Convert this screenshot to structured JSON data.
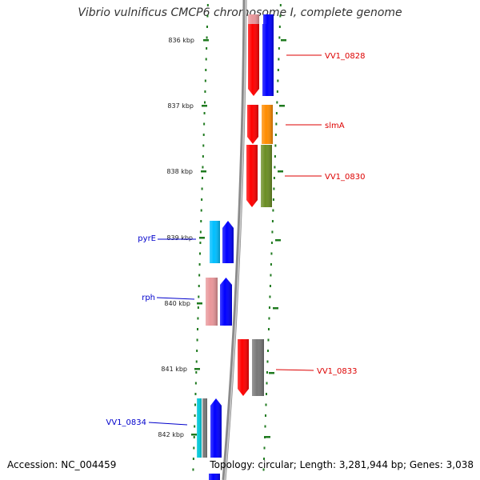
{
  "title": "Vibrio vulnificus CMCP6 chromosome I, complete genome",
  "accession": "Accession: NC_004459",
  "topology": "Topology: circular; Length: 3,281,944 bp; Genes: 3,038",
  "colors": {
    "red": "#ff0000",
    "blue": "#0000ff",
    "orange": "#ff8c00",
    "olive": "#6b8e23",
    "cyan": "#00bfff",
    "pink": "#e9969a",
    "grey": "#777777",
    "teal": "#00c8d8",
    "tick_green": "#1f7a1f",
    "label_red": "#dd0000",
    "label_blue": "#0000cc"
  },
  "ruler": [
    {
      "label": "836 kbp"
    },
    {
      "label": "837 kbp"
    },
    {
      "label": "838 kbp"
    },
    {
      "label": "839 kbp"
    },
    {
      "label": "840 kbp"
    },
    {
      "label": "841 kbp"
    },
    {
      "label": "842 kbp"
    }
  ],
  "genes": [
    {
      "name": "VV1_0828",
      "strand": "right",
      "color": "red"
    },
    {
      "name": "slmA",
      "strand": "right",
      "color": "red"
    },
    {
      "name": "VV1_0830",
      "strand": "right",
      "color": "red"
    },
    {
      "name": "pyrE",
      "strand": "left",
      "color": "blue"
    },
    {
      "name": "rph",
      "strand": "left",
      "color": "blue"
    },
    {
      "name": "VV1_0833",
      "strand": "right",
      "color": "red"
    },
    {
      "name": "VV1_0834",
      "strand": "left",
      "color": "blue"
    }
  ]
}
